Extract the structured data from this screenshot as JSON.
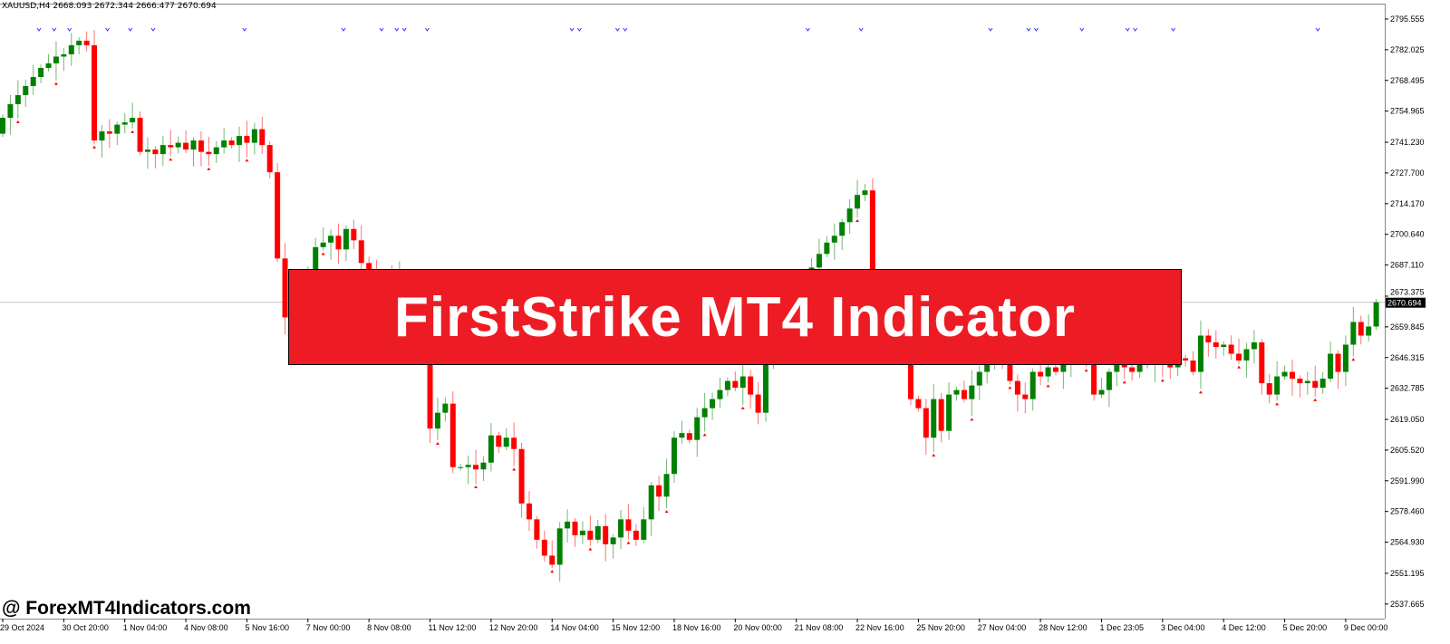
{
  "header": {
    "symbol_info": "XAUUSD,H4  2668.093 2672.344 2666.477 2670.694"
  },
  "banner": {
    "title": "FirstStrike MT4 Indicator"
  },
  "watermark": {
    "text": "@ ForexMT4Indicators.com"
  },
  "colors": {
    "bull": "#008000",
    "bear": "#ff0000",
    "banner": "#ed1c24",
    "marker_up": "#3333ff",
    "marker_down": "#ff0000"
  },
  "chart_data": {
    "type": "candlestick",
    "symbol": "XAUUSD",
    "timeframe": "H4",
    "ylim": [
      2532,
      2800
    ],
    "current_price": "2670.694",
    "y_ticks": [
      "2795.555",
      "2782.025",
      "2768.495",
      "2754.965",
      "2741.230",
      "2727.700",
      "2714.170",
      "2700.640",
      "2687.110",
      "2673.375",
      "2659.845",
      "2646.315",
      "2632.785",
      "2619.050",
      "2605.520",
      "2591.990",
      "2578.460",
      "2564.930",
      "2551.195",
      "2537.665"
    ],
    "x_ticks": [
      "29 Oct 2024",
      "30 Oct 20:00",
      "1 Nov 04:00",
      "4 Nov 08:00",
      "5 Nov 16:00",
      "7 Nov 00:00",
      "8 Nov 08:00",
      "11 Nov 12:00",
      "12 Nov 20:00",
      "14 Nov 04:00",
      "15 Nov 12:00",
      "18 Nov 16:00",
      "20 Nov 00:00",
      "21 Nov 08:00",
      "22 Nov 16:00",
      "25 Nov 20:00",
      "27 Nov 04:00",
      "28 Nov 12:00",
      "1 Dec 23:05",
      "3 Dec 04:00",
      "4 Dec 12:00",
      "5 Dec 20:00",
      "9 Dec 00:00"
    ],
    "first_open": 2745,
    "close": [
      2752,
      2758,
      2762,
      2766,
      2770,
      2774,
      2776,
      2779,
      2780,
      2784,
      2786,
      2784,
      2742,
      2746,
      2745,
      2749,
      2750,
      2752,
      2737,
      2738,
      2736,
      2740,
      2739,
      2741,
      2738,
      2742,
      2737,
      2736,
      2739,
      2742,
      2740,
      2744,
      2741,
      2747,
      2740,
      2728,
      2690,
      2664,
      2667,
      2675,
      2685,
      2695,
      2697,
      2700,
      2694,
      2703,
      2698,
      2688,
      2684,
      2680,
      2683,
      2679,
      2682,
      2676,
      2670,
      2660,
      2615,
      2622,
      2626,
      2598,
      2598,
      2599,
      2597,
      2600,
      2612,
      2607,
      2611,
      2606,
      2582,
      2575,
      2566,
      2559,
      2555,
      2571,
      2574,
      2568,
      2570,
      2566,
      2572,
      2564,
      2567,
      2575,
      2570,
      2566,
      2575,
      2590,
      2585,
      2595,
      2611,
      2613,
      2610,
      2620,
      2624,
      2628,
      2632,
      2636,
      2633,
      2638,
      2630,
      2622,
      2644,
      2650,
      2660,
      2668,
      2676,
      2680,
      2686,
      2692,
      2697,
      2700,
      2706,
      2712,
      2718,
      2720,
      2680,
      2675,
      2678,
      2672,
      2650,
      2628,
      2624,
      2611,
      2628,
      2614,
      2630,
      2632,
      2628,
      2634,
      2640,
      2645,
      2648,
      2644,
      2636,
      2630,
      2628,
      2640,
      2638,
      2642,
      2640,
      2644,
      2648,
      2652,
      2646,
      2630,
      2632,
      2640,
      2644,
      2642,
      2640,
      2646,
      2643,
      2648,
      2644,
      2642,
      2646,
      2645,
      2640,
      2656,
      2653,
      2651,
      2652,
      2648,
      2645,
      2650,
      2653,
      2635,
      2630,
      2638,
      2640,
      2637,
      2635,
      2636,
      2633,
      2637,
      2648,
      2640,
      2652,
      2662,
      2656,
      2660,
      2670.694
    ],
    "fractal_up_bars": [
      5,
      7,
      9,
      14,
      17,
      20,
      32,
      45,
      50,
      52,
      53,
      56,
      75,
      76,
      81,
      82,
      106,
      113,
      130,
      135,
      136,
      142,
      148,
      149,
      154,
      173
    ]
  }
}
